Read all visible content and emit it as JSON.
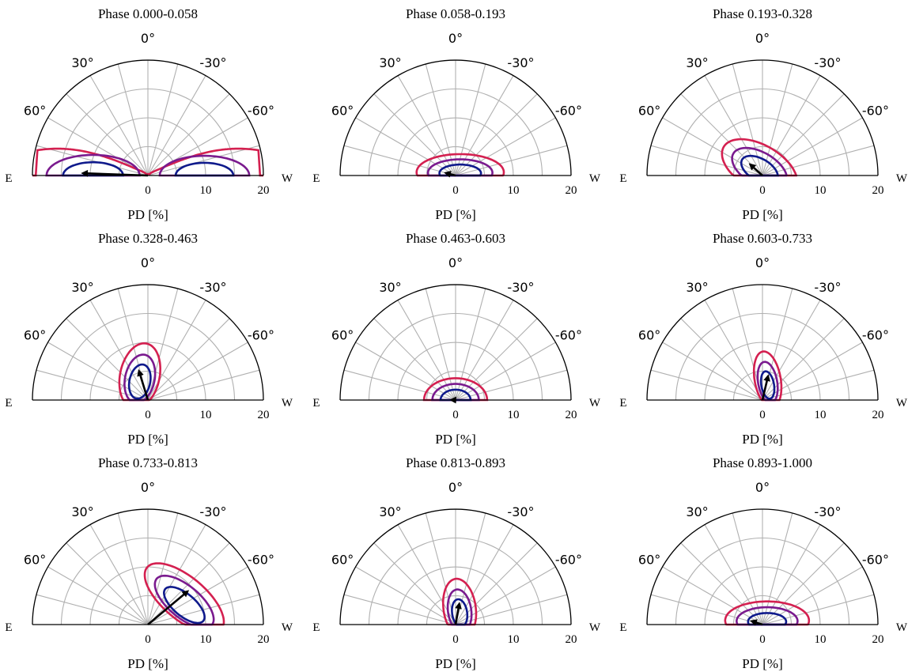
{
  "figure": {
    "east_label": "E",
    "west_label": "W",
    "pd_axis_label": "PD [%]",
    "radial_ticks": [
      0,
      10,
      20
    ],
    "angle_ticks": [
      {
        "angle": 0,
        "label": "0°"
      },
      {
        "angle": 30,
        "label": "30°"
      },
      {
        "angle": -30,
        "label": "-30°"
      },
      {
        "angle": 60,
        "label": "60°"
      },
      {
        "angle": -60,
        "label": "-60°"
      }
    ],
    "colors": {
      "frame": "#000000",
      "grid": "#b0b0b0",
      "contour_inner": "#0f1a8c",
      "contour_middle": "#7a1a8e",
      "contour_outer": "#d42050",
      "arrow": "#000000"
    }
  },
  "chart_data": [
    {
      "type": "polar-contour",
      "title": "Phase 0.000-0.058",
      "rmax": 20,
      "r_ticks": [
        0,
        10,
        20
      ],
      "theta_range_deg": [
        -90,
        90
      ],
      "grid": true,
      "arrow": {
        "pd": 11,
        "angle_deg": 88
      }
    },
    {
      "type": "polar-contour",
      "title": "Phase 0.058-0.193",
      "rmax": 20,
      "r_ticks": [
        0,
        10,
        20
      ],
      "theta_range_deg": [
        -90,
        90
      ],
      "grid": true,
      "arrow": {
        "pd": 1.5,
        "angle_deg": 75
      }
    },
    {
      "type": "polar-contour",
      "title": "Phase 0.193-0.328",
      "rmax": 20,
      "r_ticks": [
        0,
        10,
        20
      ],
      "theta_range_deg": [
        -90,
        90
      ],
      "grid": true,
      "arrow": {
        "pd": 2.6,
        "angle_deg": 48
      }
    },
    {
      "type": "polar-contour",
      "title": "Phase 0.328-0.463",
      "rmax": 20,
      "r_ticks": [
        0,
        10,
        20
      ],
      "theta_range_deg": [
        -90,
        90
      ],
      "grid": true,
      "arrow": {
        "pd": 5,
        "angle_deg": 17
      }
    },
    {
      "type": "polar-contour",
      "title": "Phase 0.463-0.603",
      "rmax": 20,
      "r_ticks": [
        0,
        10,
        20
      ],
      "theta_range_deg": [
        -90,
        90
      ],
      "grid": true,
      "arrow": {
        "pd": 0.5,
        "angle_deg": 88
      }
    },
    {
      "type": "polar-contour",
      "title": "Phase 0.603-0.733",
      "rmax": 20,
      "r_ticks": [
        0,
        10,
        20
      ],
      "theta_range_deg": [
        -90,
        90
      ],
      "grid": true,
      "arrow": {
        "pd": 4,
        "angle_deg": -13
      }
    },
    {
      "type": "polar-contour",
      "title": "Phase 0.733-0.813",
      "rmax": 20,
      "r_ticks": [
        0,
        10,
        20
      ],
      "theta_range_deg": [
        -90,
        90
      ],
      "grid": true,
      "arrow": {
        "pd": 8.7,
        "angle_deg": -50
      }
    },
    {
      "type": "polar-contour",
      "title": "Phase 0.813-0.893",
      "rmax": 20,
      "r_ticks": [
        0,
        10,
        20
      ],
      "theta_range_deg": [
        -90,
        90
      ],
      "grid": true,
      "arrow": {
        "pd": 3.4,
        "angle_deg": -10
      }
    },
    {
      "type": "polar-contour",
      "title": "Phase 0.893-1.000",
      "rmax": 20,
      "r_ticks": [
        0,
        10,
        20
      ],
      "theta_range_deg": [
        -90,
        90
      ],
      "grid": true,
      "arrow": {
        "pd": 1.7,
        "angle_deg": 72
      }
    }
  ]
}
